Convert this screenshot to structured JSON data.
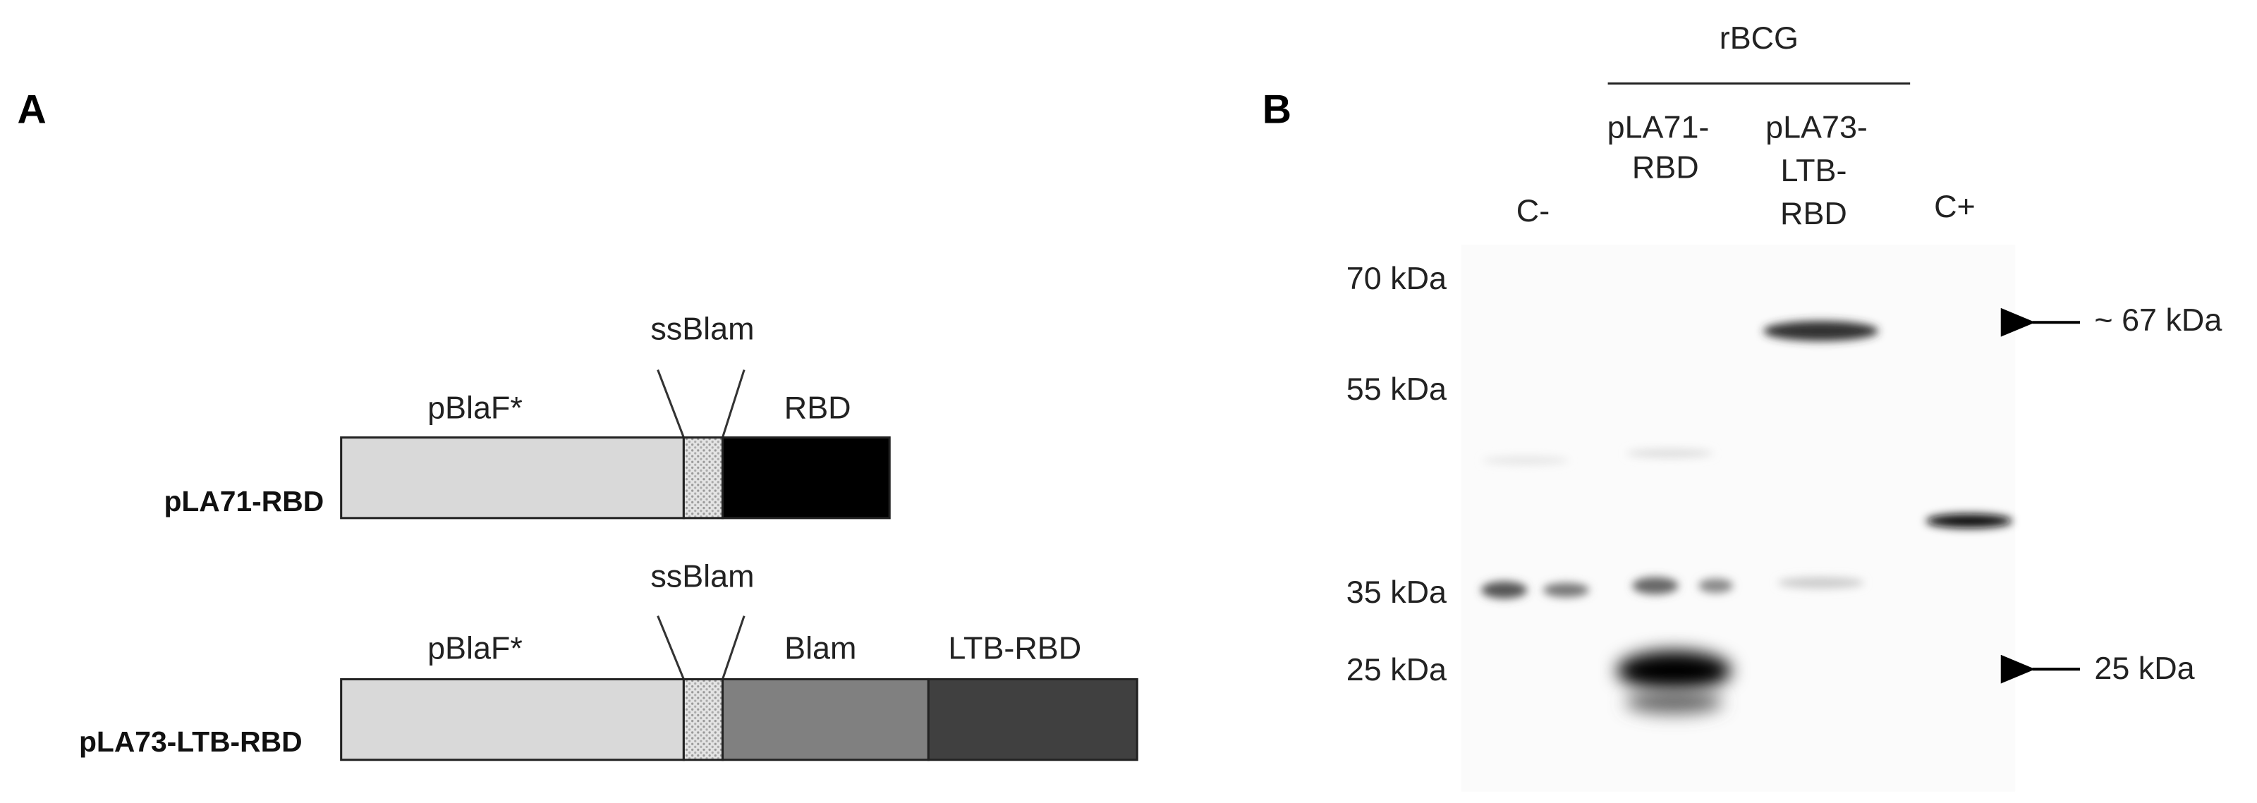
{
  "panel_a": {
    "label": "A",
    "constructs": [
      {
        "name": "pLA71-RBD",
        "segments": [
          "pBlaF*",
          "ssBlam",
          "RBD"
        ]
      },
      {
        "name": "pLA73-LTB-RBD",
        "segments": [
          "pBlaF*",
          "ssBlam",
          "Blam",
          "LTB-RBD"
        ]
      }
    ]
  },
  "panel_b": {
    "label": "B",
    "group": "rBCG",
    "lanes": [
      [
        "C-"
      ],
      [
        "pLA71-",
        "RBD"
      ],
      [
        "pLA73-",
        "LTB-",
        "RBD"
      ],
      [
        "C+"
      ]
    ],
    "markers": [
      "70 kDa",
      "55 kDa",
      "35 kDa",
      "25 kDa"
    ],
    "arrows": [
      "~ 67 kDa",
      "25 kDa"
    ]
  }
}
